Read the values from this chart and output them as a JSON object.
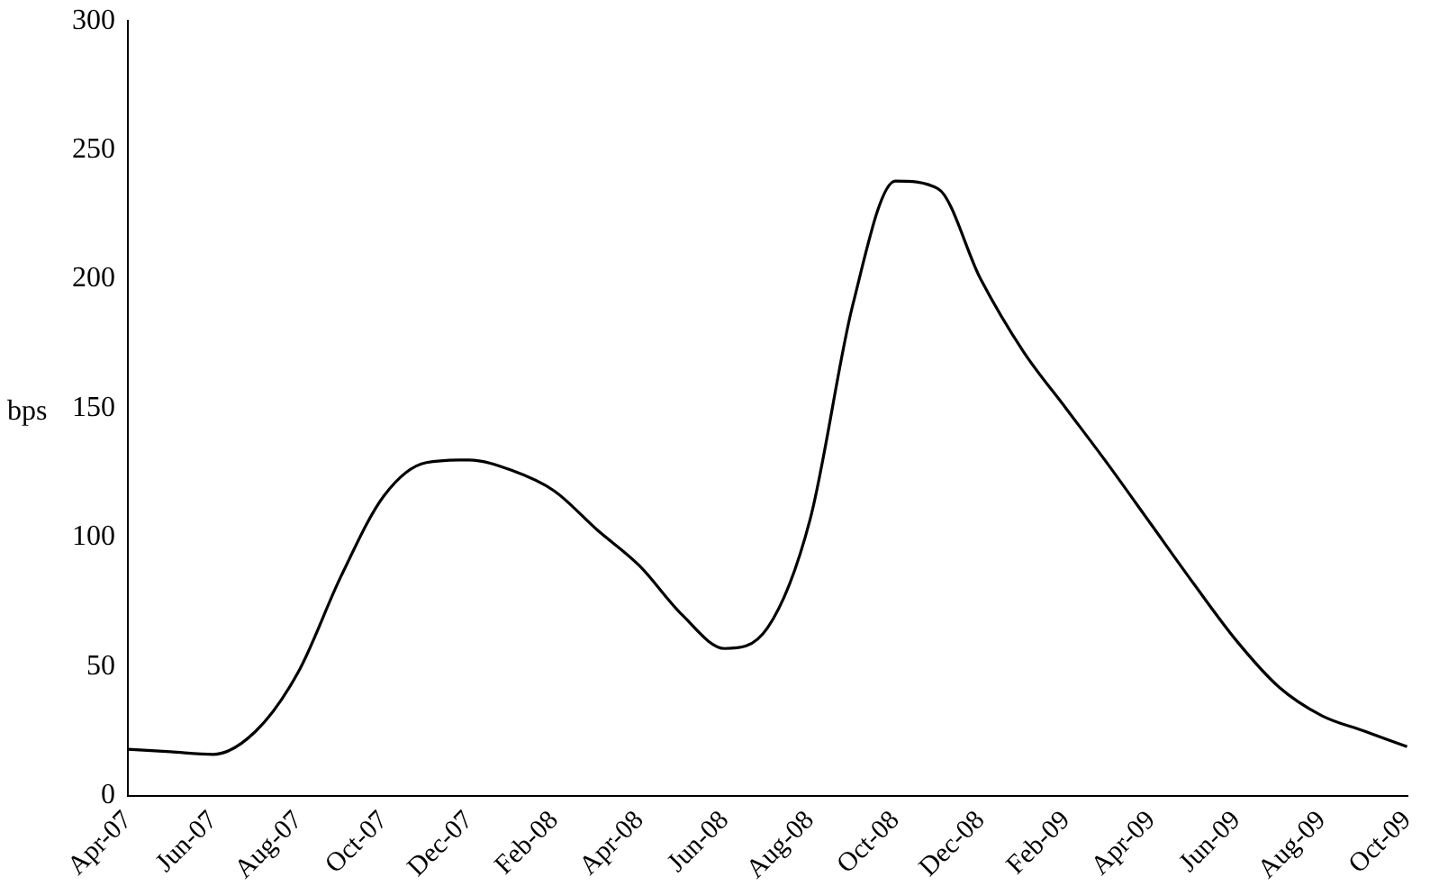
{
  "chart_data": {
    "type": "line",
    "ylabel": "bps",
    "categories": [
      "Apr-07",
      null,
      "Jun-07",
      null,
      "Aug-07",
      null,
      "Oct-07",
      null,
      "Dec-07",
      null,
      "Feb-08",
      null,
      "Apr-08",
      null,
      "Jun-08",
      null,
      "Aug-08",
      null,
      "Oct-08",
      null,
      "Dec-08",
      null,
      "Feb-09",
      null,
      "Apr-09",
      null,
      "Jun-09",
      null,
      "Aug-09",
      null,
      "Oct-09"
    ],
    "series": [
      {
        "color": "#000000",
        "values": [
          18,
          17,
          16,
          25,
          48,
          85,
          116,
          129,
          130,
          126,
          118,
          103,
          89,
          70,
          57,
          65,
          107,
          190,
          238,
          235,
          200,
          172,
          150,
          128,
          105,
          82,
          60,
          42,
          31,
          25,
          19
        ]
      }
    ],
    "ylim": [
      0,
      300
    ],
    "yticks": [
      0,
      50,
      100,
      150,
      200,
      250,
      300
    ],
    "grid": false,
    "legend": false,
    "marker": "none",
    "line_style": "solid"
  }
}
